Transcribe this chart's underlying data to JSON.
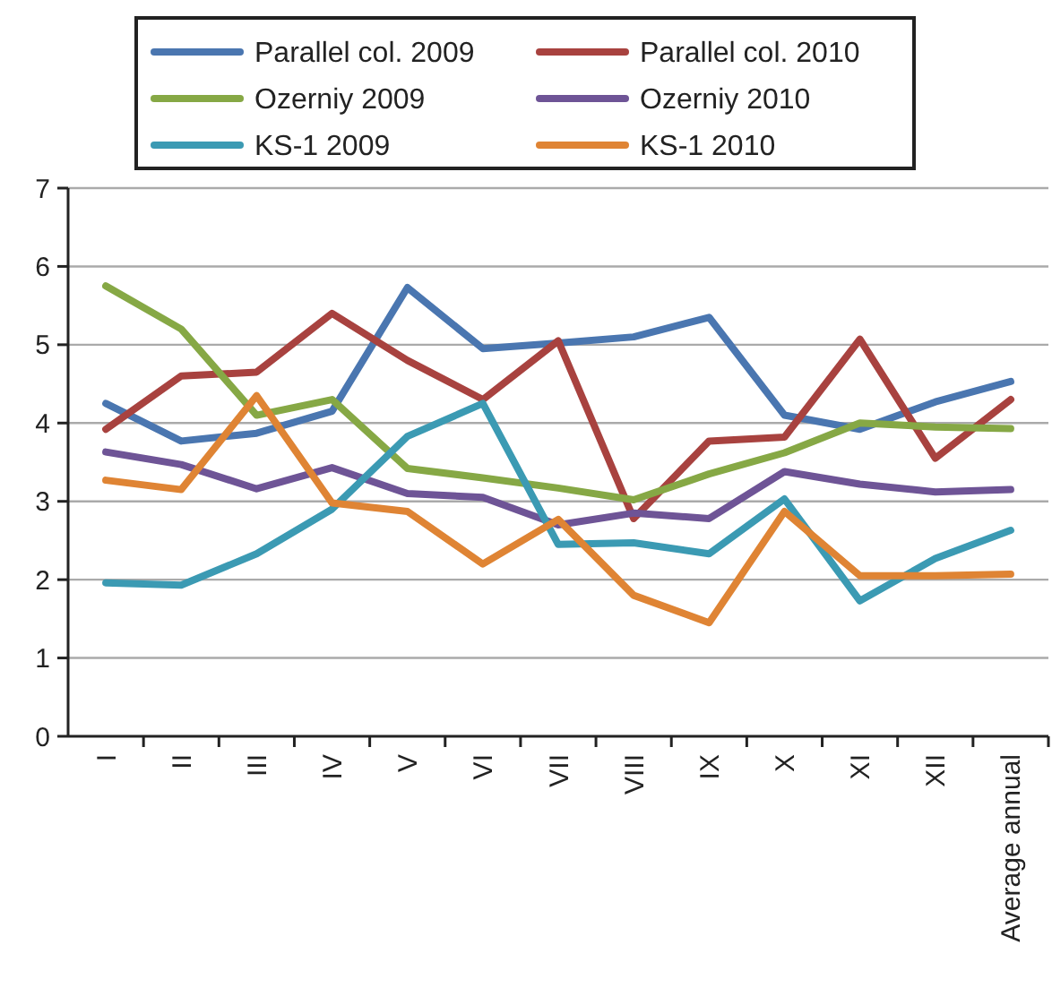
{
  "chart_data": {
    "type": "line",
    "categories": [
      "I",
      "II",
      "III",
      "IV",
      "V",
      "VI",
      "VII",
      "VIII",
      "IX",
      "X",
      "XI",
      "XII",
      "Average annual"
    ],
    "series": [
      {
        "name": "Parallel col. 2009",
        "color": "#4a76b0",
        "values": [
          4.25,
          3.77,
          3.87,
          4.15,
          5.73,
          4.95,
          5.02,
          5.1,
          5.35,
          4.1,
          3.92,
          4.27,
          4.53
        ]
      },
      {
        "name": "Parallel col. 2010",
        "color": "#a8423f",
        "values": [
          3.92,
          4.6,
          4.65,
          5.4,
          4.8,
          4.3,
          5.05,
          2.78,
          3.77,
          3.82,
          5.07,
          3.55,
          4.3
        ]
      },
      {
        "name": "Ozerniy 2009",
        "color": "#86a845",
        "values": [
          5.75,
          5.2,
          4.1,
          4.3,
          3.42,
          3.3,
          3.17,
          3.02,
          3.35,
          3.62,
          4.0,
          3.95,
          3.93
        ]
      },
      {
        "name": "Ozerniy 2010",
        "color": "#6e5496",
        "values": [
          3.63,
          3.47,
          3.16,
          3.43,
          3.1,
          3.05,
          2.7,
          2.85,
          2.78,
          3.38,
          3.22,
          3.12,
          3.15
        ]
      },
      {
        "name": "KS-1 2009",
        "color": "#3b9ab3",
        "values": [
          1.96,
          1.93,
          2.33,
          2.9,
          3.83,
          4.25,
          2.45,
          2.47,
          2.33,
          3.03,
          1.73,
          2.27,
          2.63
        ]
      },
      {
        "name": "KS-1 2010",
        "color": "#df8434",
        "values": [
          3.27,
          3.15,
          4.35,
          2.98,
          2.87,
          2.2,
          2.77,
          1.8,
          1.45,
          2.87,
          2.05,
          2.05,
          2.07
        ]
      }
    ],
    "ylim": [
      0,
      7
    ],
    "yticks": [
      0,
      1,
      2,
      3,
      4,
      5,
      6,
      7
    ],
    "grid": "y",
    "legend": "top",
    "marker": "none",
    "line_style": "solid"
  }
}
